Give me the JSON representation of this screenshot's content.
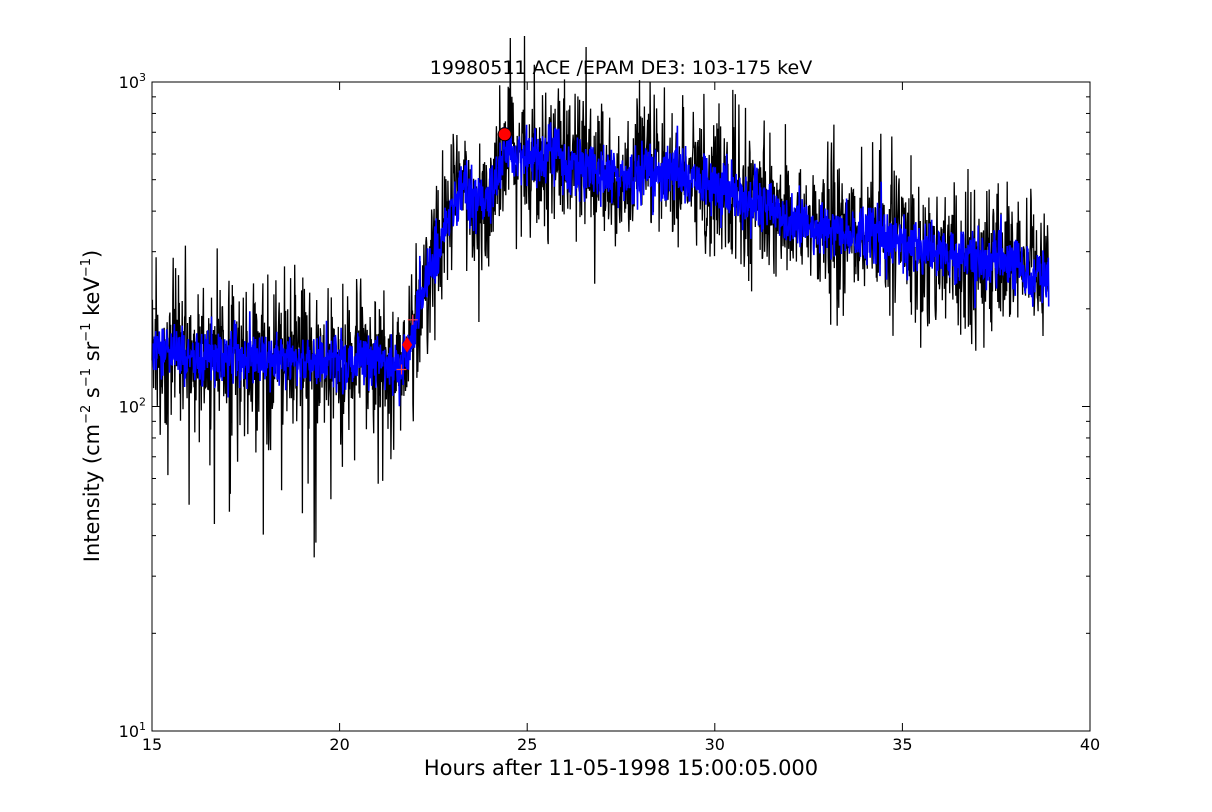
{
  "chart_data": {
    "type": "line",
    "title": "19980511 ACE /EPAM DE3: 103-175 keV",
    "xlabel": "Hours after 11-05-1998 15:00:05.000",
    "ylabel_main": "Intensity (cm",
    "ylabel_parts": [
      "Intensity (cm",
      "−2",
      " s",
      "−1",
      " sr",
      "−1",
      " keV",
      "−1",
      ")"
    ],
    "xlim": [
      15,
      40
    ],
    "ylim": [
      10,
      1000
    ],
    "yscale": "log",
    "grid": false,
    "x_ticks": [
      15,
      20,
      25,
      30,
      35,
      40
    ],
    "x_tick_labels": [
      "15",
      "20",
      "25",
      "30",
      "35",
      "40"
    ],
    "y_major_ticks": [
      10,
      100,
      1000
    ],
    "y_tick_labels": [
      {
        "base": "10",
        "exp": "1"
      },
      {
        "base": "10",
        "exp": "2"
      },
      {
        "base": "10",
        "exp": "3"
      }
    ],
    "series": [
      {
        "role": "raw",
        "color": "#000000",
        "x_range": [
          15.0,
          38.9
        ],
        "noise_log_sigma": 0.11,
        "trend": [
          [
            15.0,
            150
          ],
          [
            16.0,
            145
          ],
          [
            17.0,
            140
          ],
          [
            18.0,
            140
          ],
          [
            19.0,
            138
          ],
          [
            20.0,
            138
          ],
          [
            21.0,
            135
          ],
          [
            21.6,
            128
          ],
          [
            21.8,
            150
          ],
          [
            22.0,
            175
          ],
          [
            22.3,
            240
          ],
          [
            22.6,
            300
          ],
          [
            22.9,
            380
          ],
          [
            23.2,
            470
          ],
          [
            23.5,
            430
          ],
          [
            23.8,
            420
          ],
          [
            24.1,
            470
          ],
          [
            24.4,
            610
          ],
          [
            24.7,
            590
          ],
          [
            25.2,
            600
          ],
          [
            25.8,
            610
          ],
          [
            26.2,
            560
          ],
          [
            27.0,
            520
          ],
          [
            27.5,
            490
          ],
          [
            28.0,
            510
          ],
          [
            28.5,
            540
          ],
          [
            29.0,
            530
          ],
          [
            29.5,
            500
          ],
          [
            30.0,
            470
          ],
          [
            30.5,
            460
          ],
          [
            31.0,
            430
          ],
          [
            31.5,
            410
          ],
          [
            32.0,
            380
          ],
          [
            32.5,
            360
          ],
          [
            33.0,
            350
          ],
          [
            33.5,
            345
          ],
          [
            34.0,
            340
          ],
          [
            34.5,
            330
          ],
          [
            35.0,
            320
          ],
          [
            35.5,
            310
          ],
          [
            36.0,
            300
          ],
          [
            36.5,
            290
          ],
          [
            37.0,
            285
          ],
          [
            37.5,
            280
          ],
          [
            38.0,
            270
          ],
          [
            38.5,
            255
          ],
          [
            38.9,
            250
          ]
        ]
      },
      {
        "role": "smoothed",
        "color": "#0000ff",
        "x_range": [
          15.0,
          38.9
        ],
        "noise_log_sigma": 0.045
      }
    ],
    "markers": [
      {
        "x": 24.4,
        "y": 690,
        "shape": "circle",
        "color": "#ff0000"
      },
      {
        "x": 21.8,
        "y": 155,
        "shape": "diamond",
        "color": "#ff0000"
      },
      {
        "x": 21.65,
        "y": 130,
        "shape": "plus",
        "color": "#ff4444"
      },
      {
        "x": 21.95,
        "y": 185,
        "shape": "plus",
        "color": "#ff4444"
      }
    ]
  }
}
